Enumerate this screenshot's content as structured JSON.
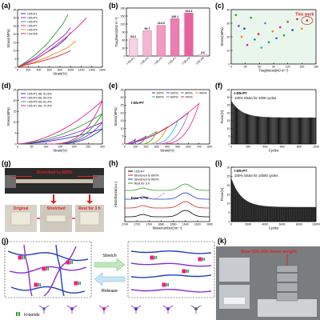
{
  "panels": {
    "a": "(a)",
    "b": "(b)",
    "c": "(c)",
    "d": "(d)",
    "e": "(e)",
    "f": "(f)",
    "g": "(g)",
    "h": "(h)",
    "i": "(i)",
    "j": "(j)",
    "k": "(k)"
  },
  "chart_data": [
    {
      "id": "a",
      "type": "line",
      "xlabel": "Strain(%)",
      "ylabel": "Stress(MPa)",
      "xlim": [
        0,
        1600
      ],
      "ylim": [
        0,
        35
      ],
      "xticks": [
        "0",
        "200",
        "400",
        "600",
        "800",
        "1000",
        "1200",
        "1400",
        "1600"
      ],
      "yticks": [
        "0",
        "5",
        "10",
        "15",
        "20",
        "25",
        "30",
        "35"
      ],
      "legend": "top-left",
      "series": [
        {
          "name": "I-D5-P1",
          "color": "#1f3fbf",
          "points": [
            [
              0,
              0
            ],
            [
              150,
              2
            ],
            [
              350,
              5
            ],
            [
              550,
              9
            ],
            [
              750,
              13
            ],
            [
              900,
              17
            ],
            [
              1000,
              21
            ]
          ]
        },
        {
          "name": "I-D5-P3",
          "color": "#8b2bd6",
          "points": [
            [
              0,
              0
            ],
            [
              150,
              2.5
            ],
            [
              350,
              6
            ],
            [
              550,
              11
            ],
            [
              750,
              16
            ],
            [
              900,
              20
            ],
            [
              1000,
              24
            ]
          ]
        },
        {
          "name": "I-D5-P5",
          "color": "#2ca02c",
          "points": [
            [
              0,
              0
            ],
            [
              150,
              3
            ],
            [
              350,
              8
            ],
            [
              550,
              14
            ],
            [
              700,
              20
            ],
            [
              850,
              26
            ],
            [
              950,
              32
            ]
          ]
        },
        {
          "name": "I-D5-P7",
          "color": "#e91e8c",
          "points": [
            [
              0,
              0
            ],
            [
              150,
              2
            ],
            [
              350,
              5
            ],
            [
              550,
              9
            ],
            [
              750,
              14
            ],
            [
              950,
              19
            ],
            [
              1150,
              25
            ],
            [
              1300,
              30
            ]
          ]
        },
        {
          "name": "I-D5-P9",
          "color": "#ff7f0e",
          "points": [
            [
              0,
              0
            ],
            [
              150,
              1.5
            ],
            [
              350,
              3.5
            ],
            [
              550,
              6
            ],
            [
              750,
              9
            ],
            [
              950,
              12
            ],
            [
              1100,
              16
            ]
          ]
        },
        {
          "name": "I-D2-P8",
          "color": "#d62728",
          "points": [
            [
              0,
              0
            ],
            [
              150,
              1.2
            ],
            [
              350,
              2.8
            ],
            [
              550,
              4.5
            ],
            [
              750,
              6.5
            ],
            [
              900,
              8.5
            ],
            [
              1000,
              10
            ]
          ]
        }
      ]
    },
    {
      "id": "b",
      "type": "bar",
      "ylabel": "Toughness(MJ m⁻³)",
      "ylim": [
        0,
        180
      ],
      "yticks": [
        "0",
        "30",
        "60",
        "90",
        "120",
        "150",
        "180"
      ],
      "categories": [
        "I-D5-P1",
        "I-D5-P3",
        "I-D5-P5",
        "I-D5-P7",
        "I-D5-P9",
        "I-D2-P8"
      ],
      "values": [
        64.2,
        94.7,
        114.9,
        140.1,
        161.2,
        4.6
      ],
      "value_labels": [
        "64.2",
        "94.7",
        "114.9",
        "140.1",
        "161.2",
        "4.6"
      ],
      "colors": [
        "#f7d3e4",
        "#f3b6d2",
        "#f09ac1",
        "#ec7eb0",
        "#e8629f",
        "#e0e0e0"
      ]
    },
    {
      "id": "c",
      "type": "scatter",
      "xlabel": "Toughness(MJ m⁻³)",
      "ylabel": "Stress(MPa)",
      "xlim": [
        0,
        180
      ],
      "ylim": [
        0,
        40
      ],
      "xticks": [
        "0",
        "30",
        "60",
        "90",
        "120",
        "150",
        "180"
      ],
      "yticks": [
        "0",
        "10",
        "20",
        "30",
        "40"
      ],
      "annotation": "This work",
      "points": [
        [
          10,
          36,
          "#2ca02c"
        ],
        [
          16,
          28,
          "#8b2bd6"
        ],
        [
          22,
          20,
          "#ff7f0e"
        ],
        [
          28,
          26,
          "#1f3fbf"
        ],
        [
          34,
          14,
          "#e91e8c"
        ],
        [
          42,
          34,
          "#2ca02c"
        ],
        [
          50,
          18,
          "#1f77b4"
        ],
        [
          58,
          22,
          "#d62728"
        ],
        [
          64,
          12,
          "#17becf"
        ],
        [
          72,
          30,
          "#9467bd"
        ],
        [
          80,
          16,
          "#2ca02c"
        ],
        [
          88,
          24,
          "#ff7f0e"
        ],
        [
          96,
          19,
          "#1f77b4"
        ],
        [
          104,
          27,
          "#e91e8c"
        ],
        [
          112,
          21,
          "#2ca02c"
        ],
        [
          120,
          31,
          "#8c564b"
        ],
        [
          130,
          25,
          "#1f3fbf"
        ],
        [
          140,
          33,
          "#d62728"
        ],
        [
          150,
          26,
          "#ff7f0e"
        ],
        [
          161,
          32,
          "#d62728"
        ]
      ]
    },
    {
      "id": "d",
      "type": "line",
      "xlabel": "Strain(%)",
      "ylabel": "Stress(MPa)",
      "xlim": [
        0,
        300
      ],
      "ylim": [
        0,
        25
      ],
      "xticks": [
        "0",
        "50",
        "100",
        "150",
        "200",
        "250",
        "300"
      ],
      "yticks": [
        "0",
        "5",
        "10",
        "15",
        "20",
        "25"
      ],
      "legend": "top-left",
      "series": [
        {
          "name": "I-D5-P1 DE 51.8%",
          "color": "#1f3fbf",
          "peak": 7
        },
        {
          "name": "I-D5-P3 DE 59.0%",
          "color": "#8b2bd6",
          "peak": 10
        },
        {
          "name": "I-D5-P5 DE 61.4%",
          "color": "#2ca02c",
          "peak": 14
        },
        {
          "name": "I-D5-P7 DE 72.4%",
          "color": "#e91e8c",
          "peak": 20
        }
      ]
    },
    {
      "id": "e",
      "type": "line",
      "xlabel": "Strain(%)",
      "ylabel": "Stress(MPa)",
      "xlim": [
        0,
        800
      ],
      "ylim": [
        0,
        35
      ],
      "xticks": [
        "0",
        "100",
        "200",
        "300",
        "400",
        "500",
        "600",
        "700",
        "800"
      ],
      "yticks": [
        "0",
        "5",
        "10",
        "15",
        "20",
        "25",
        "30",
        "35"
      ],
      "title": "I-D5-P7",
      "legend": "top",
      "series": [
        {
          "name": "100%",
          "color": "#1f3fbf",
          "strain": 100,
          "peak": 3
        },
        {
          "name": "200%",
          "color": "#8b2bd6",
          "strain": 200,
          "peak": 5
        },
        {
          "name": "300%",
          "color": "#2ca02c",
          "strain": 300,
          "peak": 8
        },
        {
          "name": "400%",
          "color": "#ff7f0e",
          "strain": 400,
          "peak": 11
        },
        {
          "name": "500%",
          "color": "#17becf",
          "strain": 500,
          "peak": 15
        },
        {
          "name": "600%",
          "color": "#9467bd",
          "strain": 600,
          "peak": 20
        },
        {
          "name": "700%",
          "color": "#e91e8c",
          "strain": 700,
          "peak": 26
        }
      ]
    },
    {
      "id": "f",
      "type": "line",
      "xlabel": "Cycles",
      "ylabel": "Force(N)",
      "xlim": [
        0,
        1000
      ],
      "ylim": [
        0,
        35
      ],
      "xticks": [
        "0",
        "200",
        "400",
        "600",
        "800",
        "1000"
      ],
      "yticks": [
        "0",
        "5",
        "10",
        "15",
        "20",
        "25",
        "30",
        "35"
      ],
      "title": "I-D5-P7",
      "subtitle": "100% Strain for 1000 cycles",
      "series": [
        {
          "color": "#000000",
          "start": 28,
          "plateau": 17
        }
      ]
    },
    {
      "id": "h",
      "type": "line",
      "xlabel": "Wavenumber(cm⁻¹)",
      "ylabel": "Absorbance(a.u.)",
      "xlim": [
        1740,
        1600
      ],
      "xticks": [
        "1740",
        "1720",
        "1700",
        "1680",
        "1660",
        "1640",
        "1620",
        "1600"
      ],
      "annotation": "Free -C=O",
      "legend": "top-left",
      "series": [
        {
          "name": "I-D5-P7",
          "color": "#000000",
          "offset": 0
        },
        {
          "name": "Stretched to 600%",
          "color": "#d62728",
          "offset": 1
        },
        {
          "name": "Stretched to 600%",
          "color": "#1f3fbf",
          "offset": 2
        },
        {
          "name": "Rest for 3 h",
          "color": "#2ca02c",
          "offset": 3
        }
      ]
    },
    {
      "id": "i",
      "type": "line",
      "xlabel": "Cycles",
      "ylabel": "Force(N)",
      "xlim": [
        0,
        10000
      ],
      "ylim": [
        0,
        30
      ],
      "xticks": [
        "0",
        "2000",
        "4000",
        "6000",
        "8000",
        "10000"
      ],
      "yticks": [
        "0",
        "5",
        "10",
        "15",
        "20",
        "25",
        "30"
      ],
      "title": "I-D5-P7",
      "subtitle": "100% Strain for 10000 cycles",
      "series": [
        {
          "color": "#000000",
          "start": 24,
          "plateau": 8
        }
      ]
    }
  ],
  "g_photo": {
    "banner": "Stretched to 600%",
    "label_original": "Original",
    "label_stretched": "Stretched",
    "label_rest": "Rest for 3 h"
  },
  "j_schema": {
    "stretch": "Stretch",
    "release": "Release",
    "legend_hbonds": "H-bonds"
  },
  "k_photo": {
    "title": "Bear 100,000 times weight"
  },
  "colors": {
    "pink": "#e91e8c",
    "purple": "#8b2bd6",
    "blue": "#1f3fbf",
    "green": "#2ca02c",
    "cyan": "#17becf"
  }
}
